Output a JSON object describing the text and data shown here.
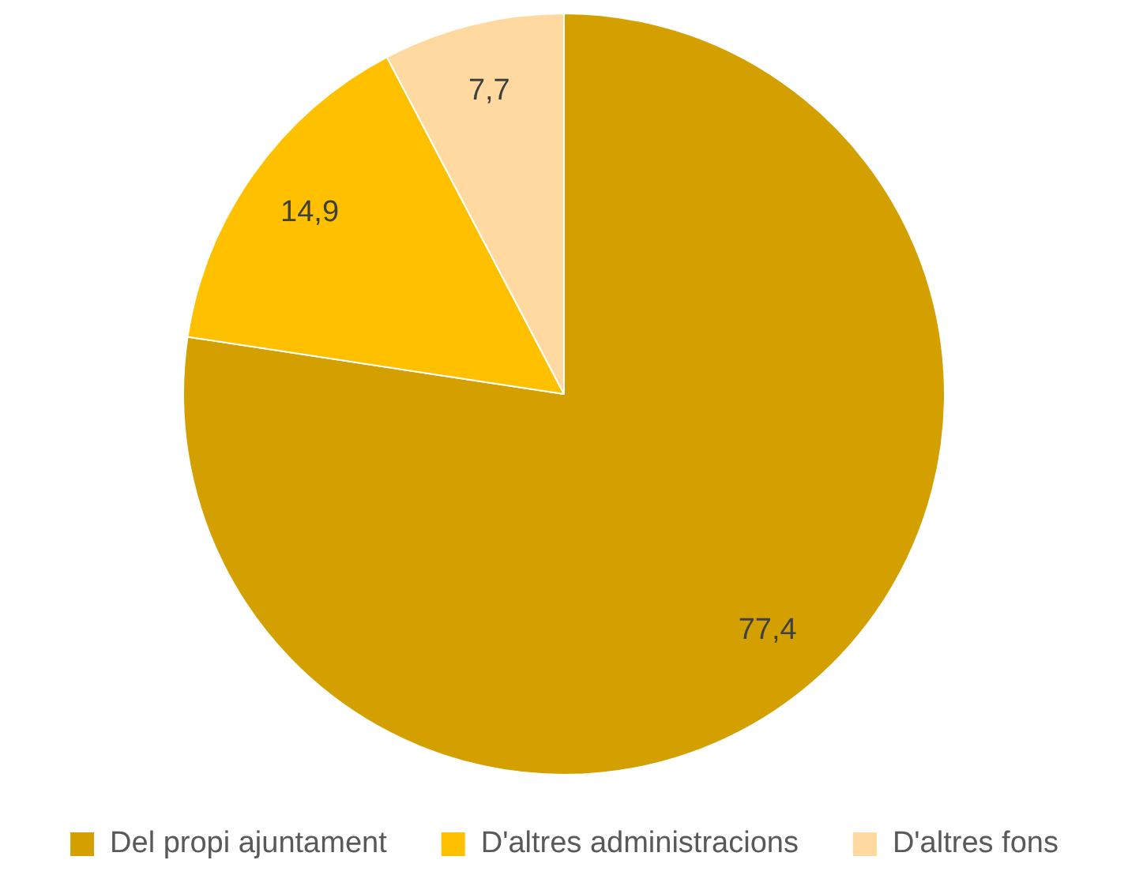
{
  "chart_data": {
    "type": "pie",
    "categories": [
      "Del propi ajuntament",
      "D'altres administracions",
      "D'altres fons"
    ],
    "values": [
      77.4,
      14.9,
      7.7
    ],
    "value_labels": [
      "77,4",
      "14,9",
      "7,7"
    ],
    "colors": [
      "#d4a000",
      "#ffc000",
      "#ffd99f"
    ],
    "legend": "bottom"
  }
}
